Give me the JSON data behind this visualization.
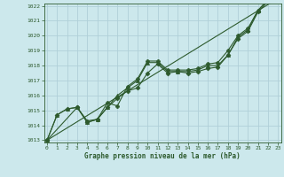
{
  "title": "Graphe pression niveau de la mer (hPa)",
  "bg_color": "#cce8ec",
  "grid_color": "#b0d0d8",
  "line_color": "#2d5a2d",
  "xlim": [
    0,
    23
  ],
  "ylim": [
    1013,
    1022
  ],
  "xticks": [
    0,
    1,
    2,
    3,
    4,
    5,
    6,
    7,
    8,
    9,
    10,
    11,
    12,
    13,
    14,
    15,
    16,
    17,
    18,
    19,
    20,
    21,
    22,
    23
  ],
  "yticks": [
    1013,
    1014,
    1015,
    1016,
    1017,
    1018,
    1019,
    1020,
    1021,
    1022
  ],
  "series": [
    {
      "x": [
        0,
        1,
        2,
        3,
        4,
        5,
        6,
        7,
        8,
        9,
        10,
        11,
        12,
        13,
        14,
        15,
        16,
        17,
        18,
        19,
        20,
        21,
        22,
        23
      ],
      "y": [
        1013.0,
        1014.7,
        1015.1,
        1015.2,
        1014.2,
        1014.4,
        1015.2,
        1015.8,
        1016.3,
        1016.5,
        1017.5,
        1018.1,
        1017.5,
        1017.6,
        1017.5,
        1017.6,
        1017.8,
        1017.9,
        1018.7,
        1019.8,
        1020.3,
        1021.6,
        1022.3,
        1022.4
      ],
      "marker": "D",
      "markersize": 2.5,
      "lw": 0.8
    },
    {
      "x": [
        0,
        1,
        2,
        3,
        4,
        5,
        6,
        7,
        8,
        9,
        10,
        11,
        12,
        13,
        14,
        15,
        16,
        17,
        18,
        19,
        20,
        21,
        22,
        23
      ],
      "y": [
        1013.0,
        1014.7,
        1015.1,
        1015.2,
        1014.2,
        1014.4,
        1015.2,
        1016.0,
        1016.5,
        1017.0,
        1018.2,
        1018.2,
        1017.6,
        1017.6,
        1017.6,
        1017.7,
        1018.0,
        1018.0,
        1018.7,
        1019.9,
        1020.4,
        1021.7,
        1022.4,
        1022.5
      ],
      "marker": "^",
      "markersize": 3,
      "lw": 0.8
    },
    {
      "x": [
        0,
        3,
        4,
        5,
        6,
        7,
        8,
        9,
        10,
        11,
        12,
        13,
        14,
        15,
        16,
        17,
        18,
        19,
        20,
        21,
        22,
        23
      ],
      "y": [
        1013.0,
        1015.2,
        1014.3,
        1014.4,
        1015.5,
        1015.3,
        1016.6,
        1017.1,
        1018.3,
        1018.3,
        1017.7,
        1017.7,
        1017.7,
        1017.8,
        1018.1,
        1018.2,
        1019.0,
        1020.0,
        1020.5,
        1021.7,
        1022.4,
        1022.5
      ],
      "marker": "P",
      "markersize": 3,
      "lw": 0.8
    },
    {
      "x": [
        0,
        23
      ],
      "y": [
        1013.0,
        1022.5
      ],
      "marker": null,
      "markersize": 0,
      "lw": 0.8
    }
  ]
}
